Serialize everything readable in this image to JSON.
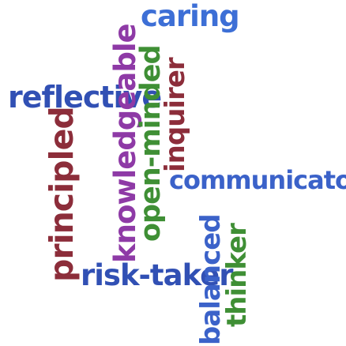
{
  "words": {
    "caring": {
      "text": "caring",
      "color": "#3d6fd6"
    },
    "reflective": {
      "text": "reflective",
      "color": "#3150b4"
    },
    "knowledgeable": {
      "text": "knowledgeable",
      "color": "#8e3aa6"
    },
    "open_minded": {
      "text": "open-minded",
      "color": "#3f8f35"
    },
    "inquirer": {
      "text": "inquirer",
      "color": "#8c2d3a"
    },
    "communicator": {
      "text": "communicator",
      "color": "#3b62c9"
    },
    "principled": {
      "text": "principled",
      "color": "#8c2d3a"
    },
    "risk_taker": {
      "text": "risk-taker",
      "color": "#3150b4"
    },
    "balanced": {
      "text": "balanced",
      "color": "#3b62c9"
    },
    "thinker": {
      "text": "thinker",
      "color": "#3f8f35"
    }
  }
}
